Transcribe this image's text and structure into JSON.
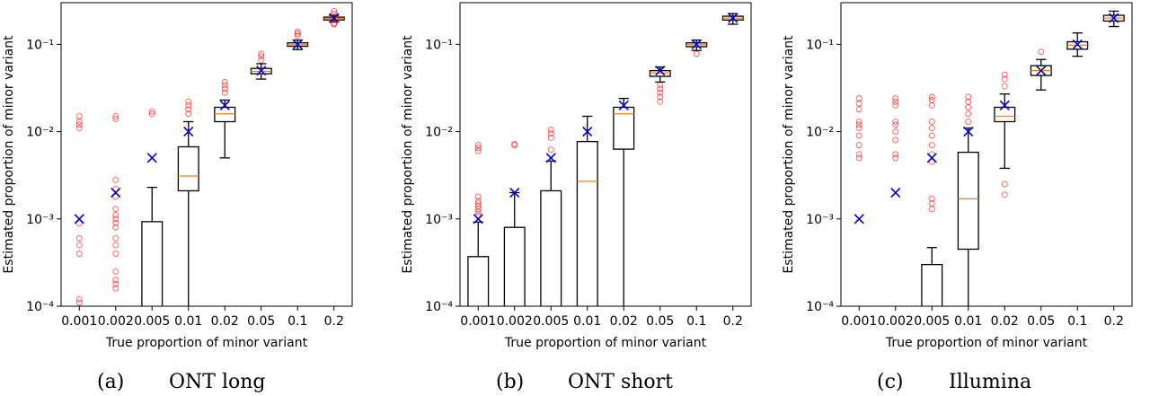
{
  "chart_data": [
    {
      "type": "box",
      "caption_label": "(a)",
      "caption": "ONT long",
      "xlabel": "True proportion of minor variant",
      "ylabel": "Estimated proportion of minor variant",
      "categories": [
        "0.001",
        "0.002",
        "0.005",
        "0.01",
        "0.02",
        "0.05",
        "0.1",
        "0.2"
      ],
      "log_scale": true,
      "ylim": [
        0.0001,
        0.3
      ],
      "yticks": [
        {
          "value": 0.0001,
          "label": "10⁻⁴"
        },
        {
          "value": 0.001,
          "label": "10⁻³"
        },
        {
          "value": 0.01,
          "label": "10⁻²"
        },
        {
          "value": 0.1,
          "label": "10⁻¹"
        }
      ],
      "box_color": "#000000",
      "median_color": "#ff7f0e",
      "outlier_color": "#ff0000",
      "marker_color": "#0000cc",
      "boxes": [
        {
          "whisker_low": null,
          "q1": null,
          "median": null,
          "q3": null,
          "whisker_high": null,
          "outliers": [
            0.015,
            0.013,
            0.012,
            0.011,
            0.00089,
            0.0006,
            0.0005,
            0.0004,
            0.00012,
            0.00011
          ]
        },
        {
          "whisker_low": null,
          "q1": null,
          "median": null,
          "q3": null,
          "whisker_high": null,
          "outliers": [
            0.015,
            0.014,
            0.0028,
            0.0022,
            0.0018,
            0.0013,
            0.0011,
            0.001,
            0.0009,
            0.0008,
            0.0006,
            0.0005,
            0.0004,
            0.00025,
            0.0002,
            0.00018,
            0.00016
          ]
        },
        {
          "whisker_low": null,
          "q1": null,
          "median": null,
          "q3": 0.00093,
          "whisker_high": 0.0023,
          "outliers": [
            0.017,
            0.016
          ]
        },
        {
          "whisker_low": null,
          "q1": 0.0021,
          "median": 0.0031,
          "q3": 0.0067,
          "whisker_high": 0.013,
          "outliers": [
            0.016,
            0.018,
            0.02,
            0.022
          ]
        },
        {
          "whisker_low": 0.005,
          "q1": 0.013,
          "median": 0.016,
          "q3": 0.019,
          "whisker_high": 0.023,
          "outliers": [
            0.028,
            0.031,
            0.034,
            0.037
          ]
        },
        {
          "whisker_low": 0.04,
          "q1": 0.046,
          "median": 0.049,
          "q3": 0.053,
          "whisker_high": 0.06,
          "outliers": [
            0.066,
            0.073,
            0.078
          ]
        },
        {
          "whisker_low": 0.087,
          "q1": 0.095,
          "median": 0.099,
          "q3": 0.104,
          "whisker_high": 0.112,
          "outliers": [
            0.125,
            0.133,
            0.14
          ]
        },
        {
          "whisker_low": 0.18,
          "q1": 0.19,
          "median": 0.198,
          "q3": 0.205,
          "whisker_high": 0.215,
          "outliers": [
            0.17,
            0.175,
            0.225,
            0.24
          ]
        }
      ],
      "markers": [
        0.001,
        0.002,
        0.005,
        0.01,
        0.02,
        0.05,
        0.1,
        0.2
      ]
    },
    {
      "type": "box",
      "caption_label": "(b)",
      "caption": "ONT short",
      "xlabel": "True proportion of minor variant",
      "ylabel": "Estimated proportion of minor variant",
      "categories": [
        "0.001",
        "0.002",
        "0.005",
        "0.01",
        "0.02",
        "0.05",
        "0.1",
        "0.2"
      ],
      "log_scale": true,
      "ylim": [
        0.0001,
        0.3
      ],
      "yticks": [
        {
          "value": 0.0001,
          "label": "10⁻⁴"
        },
        {
          "value": 0.001,
          "label": "10⁻³"
        },
        {
          "value": 0.01,
          "label": "10⁻²"
        },
        {
          "value": 0.1,
          "label": "10⁻¹"
        }
      ],
      "box_color": "#000000",
      "median_color": "#ff7f0e",
      "outlier_color": "#ff0000",
      "marker_color": "#0000cc",
      "boxes": [
        {
          "whisker_low": null,
          "q1": null,
          "median": null,
          "q3": 0.00037,
          "whisker_high": 0.00092,
          "outliers": [
            0.0011,
            0.0012,
            0.0013,
            0.0014,
            0.0015,
            0.0016,
            0.0018,
            0.006,
            0.0065,
            0.007
          ]
        },
        {
          "whisker_low": null,
          "q1": null,
          "median": null,
          "q3": 0.0008,
          "whisker_high": 0.002,
          "outliers": [
            0.007,
            0.0072
          ]
        },
        {
          "whisker_low": null,
          "q1": null,
          "median": null,
          "q3": 0.0021,
          "whisker_high": 0.0046,
          "outliers": [
            0.0062,
            0.0085,
            0.0095,
            0.0105
          ]
        },
        {
          "whisker_low": null,
          "q1": null,
          "median": 0.0027,
          "q3": 0.0077,
          "whisker_high": 0.015,
          "outliers": []
        },
        {
          "whisker_low": null,
          "q1": 0.0063,
          "median": 0.016,
          "q3": 0.019,
          "whisker_high": 0.024,
          "outliers": []
        },
        {
          "whisker_low": 0.037,
          "q1": 0.043,
          "median": 0.047,
          "q3": 0.05,
          "whisker_high": 0.055,
          "outliers": [
            0.022,
            0.025,
            0.028,
            0.031,
            0.034
          ]
        },
        {
          "whisker_low": 0.085,
          "q1": 0.094,
          "median": 0.099,
          "q3": 0.104,
          "whisker_high": 0.112,
          "outliers": [
            0.078
          ]
        },
        {
          "whisker_low": 0.17,
          "q1": 0.19,
          "median": 0.2,
          "q3": 0.21,
          "whisker_high": 0.225,
          "outliers": []
        }
      ],
      "markers": [
        0.001,
        0.002,
        0.005,
        0.01,
        0.02,
        0.05,
        0.1,
        0.2
      ]
    },
    {
      "type": "box",
      "caption_label": "(c)",
      "caption": "Illumina",
      "xlabel": "True proportion of minor variant",
      "ylabel": "Estimated proportion of minor variant",
      "categories": [
        "0.001",
        "0.002",
        "0.005",
        "0.01",
        "0.02",
        "0.05",
        "0.1",
        "0.2"
      ],
      "log_scale": true,
      "ylim": [
        0.0001,
        0.3
      ],
      "yticks": [
        {
          "value": 0.0001,
          "label": "10⁻⁴"
        },
        {
          "value": 0.001,
          "label": "10⁻³"
        },
        {
          "value": 0.01,
          "label": "10⁻²"
        },
        {
          "value": 0.1,
          "label": "10⁻¹"
        }
      ],
      "box_color": "#000000",
      "median_color": "#ff7f0e",
      "outlier_color": "#ff0000",
      "marker_color": "#0000cc",
      "boxes": [
        {
          "whisker_low": null,
          "q1": null,
          "median": null,
          "q3": null,
          "whisker_high": null,
          "outliers": [
            0.005,
            0.0055,
            0.007,
            0.009,
            0.011,
            0.012,
            0.013,
            0.018,
            0.021,
            0.024
          ]
        },
        {
          "whisker_low": null,
          "q1": null,
          "median": null,
          "q3": null,
          "whisker_high": null,
          "outliers": [
            0.005,
            0.0055,
            0.008,
            0.01,
            0.012,
            0.013,
            0.02,
            0.022,
            0.024
          ]
        },
        {
          "whisker_low": null,
          "q1": null,
          "median": null,
          "q3": 0.0003,
          "whisker_high": 0.00047,
          "outliers": [
            0.0013,
            0.0015,
            0.0017,
            0.0045,
            0.0055,
            0.007,
            0.009,
            0.011,
            0.013,
            0.02,
            0.023,
            0.025
          ]
        },
        {
          "whisker_low": null,
          "q1": 0.00045,
          "median": 0.0017,
          "q3": 0.0058,
          "whisker_high": 0.011,
          "outliers": [
            0.013,
            0.016,
            0.019,
            0.022,
            0.025
          ]
        },
        {
          "whisker_low": 0.0038,
          "q1": 0.013,
          "median": 0.015,
          "q3": 0.019,
          "whisker_high": 0.027,
          "outliers": [
            0.0019,
            0.0025,
            0.033,
            0.04,
            0.045
          ]
        },
        {
          "whisker_low": 0.03,
          "q1": 0.044,
          "median": 0.05,
          "q3": 0.057,
          "whisker_high": 0.067,
          "outliers": [
            0.082
          ]
        },
        {
          "whisker_low": 0.073,
          "q1": 0.088,
          "median": 0.098,
          "q3": 0.107,
          "whisker_high": 0.135,
          "outliers": []
        },
        {
          "whisker_low": 0.16,
          "q1": 0.185,
          "median": 0.2,
          "q3": 0.215,
          "whisker_high": 0.24,
          "outliers": []
        }
      ],
      "markers": [
        0.001,
        0.002,
        0.005,
        0.01,
        0.02,
        0.05,
        0.1,
        0.2
      ]
    }
  ]
}
